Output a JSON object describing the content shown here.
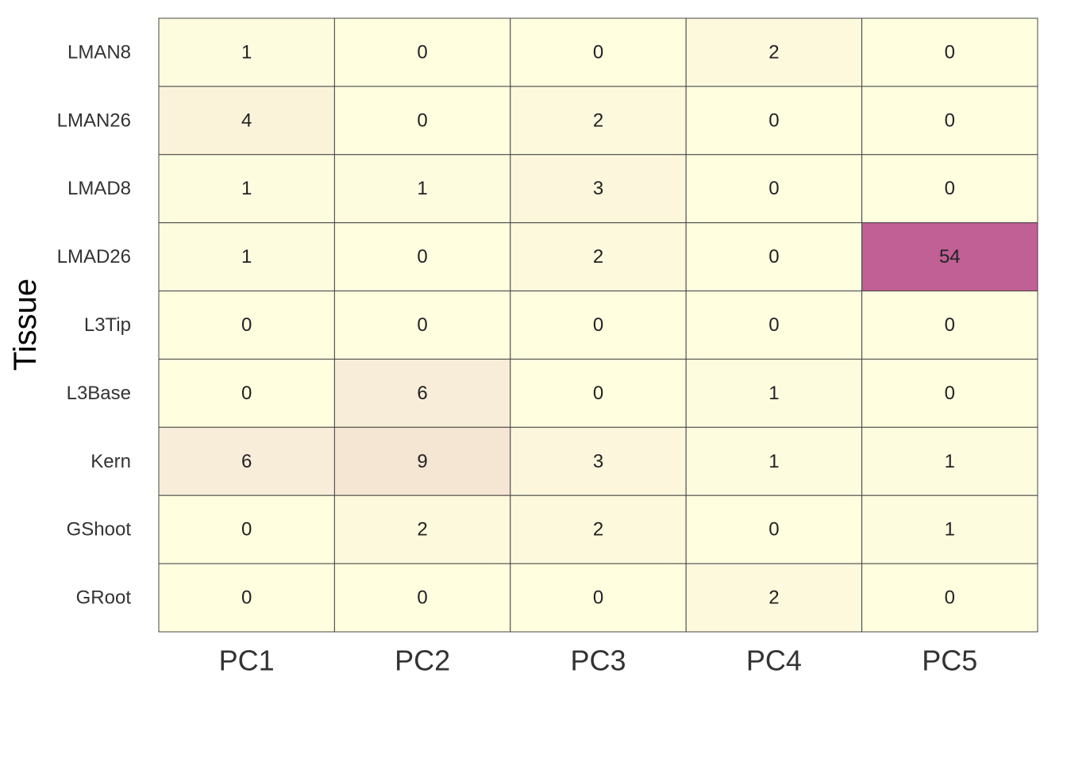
{
  "chart_data": {
    "type": "heatmap",
    "y_label": "Tissue",
    "categories": [
      "PC1",
      "PC2",
      "PC3",
      "PC4",
      "PC5"
    ],
    "rows": [
      "LMAN8",
      "LMAN26",
      "LMAD8",
      "LMAD26",
      "L3Tip",
      "L3Base",
      "Kern",
      "GShoot",
      "GRoot"
    ],
    "values": [
      [
        1,
        0,
        0,
        2,
        0
      ],
      [
        4,
        0,
        2,
        0,
        0
      ],
      [
        1,
        1,
        3,
        0,
        0
      ],
      [
        1,
        0,
        2,
        0,
        54
      ],
      [
        0,
        0,
        0,
        0,
        0
      ],
      [
        0,
        6,
        0,
        1,
        0
      ],
      [
        6,
        9,
        3,
        1,
        1
      ],
      [
        0,
        2,
        2,
        0,
        1
      ],
      [
        0,
        0,
        0,
        2,
        0
      ]
    ],
    "color_range": [
      "#ffffe0",
      "#c06094"
    ],
    "border_color": "#444444"
  }
}
